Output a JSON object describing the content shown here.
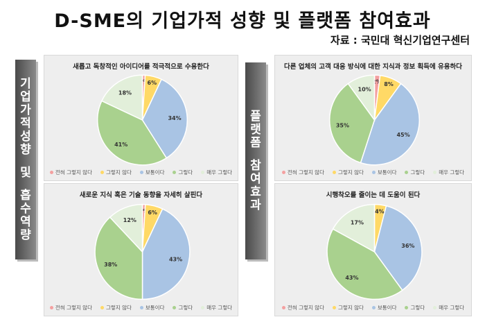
{
  "title": "D-SME의 기업가적 성향 및 플랫폼 참여효과",
  "source": "자료 : 국민대 혁신기업연구센터",
  "sidebar_left": [
    "기",
    "업",
    "가",
    "적",
    "성",
    "향",
    "",
    "및",
    "",
    "흡",
    "수",
    "역",
    "량"
  ],
  "sidebar_right": [
    "플",
    "랫",
    "폼",
    "",
    "참",
    "여",
    "효",
    "과"
  ],
  "legend_labels": [
    "전혀 그렇지 않다",
    "그렇지 않다",
    "보통이다",
    "그렇다",
    "매우 그렇다"
  ],
  "colors": [
    "#f4a0a0",
    "#ffd966",
    "#a9c4e4",
    "#a9d18e",
    "#e2efda"
  ],
  "chart_data": [
    {
      "type": "pie",
      "title": "새롭고 독창적인 아이디어를 적극적으로 수용한다",
      "categories": [
        "전혀 그렇지 않다",
        "그렇지 않다",
        "보통이다",
        "그렇다",
        "매우 그렇다"
      ],
      "values": [
        1,
        6,
        34,
        41,
        18
      ],
      "labels": [
        "1%",
        "6%",
        "34%",
        "41%",
        "18%"
      ]
    },
    {
      "type": "pie",
      "title": "다른 업체의 고객 대응 방식에 대한 지식과 정보 획득에 유용하다",
      "categories": [
        "전혀 그렇지 않다",
        "그렇지 않다",
        "보통이다",
        "그렇다",
        "매우 그렇다"
      ],
      "values": [
        2,
        8,
        45,
        35,
        10
      ],
      "labels": [
        "2%",
        "8%",
        "45%",
        "35%",
        "10%"
      ]
    },
    {
      "type": "pie",
      "title": "새로운 지식 혹은 기술 동향을 자세히 살핀다",
      "categories": [
        "전혀 그렇지 않다",
        "그렇지 않다",
        "보통이다",
        "그렇다",
        "매우 그렇다"
      ],
      "values": [
        1,
        6,
        43,
        38,
        12
      ],
      "labels": [
        "1%",
        "6%",
        "43%",
        "38%",
        "12%"
      ]
    },
    {
      "type": "pie",
      "title": "시행착오를 줄이는 데 도움이 된다",
      "categories": [
        "전혀 그렇지 않다",
        "그렇지 않다",
        "보통이다",
        "그렇다",
        "매우 그렇다"
      ],
      "values": [
        0,
        4,
        36,
        43,
        17
      ],
      "labels": [
        "0%",
        "4%",
        "36%",
        "43%",
        "17%"
      ]
    }
  ]
}
